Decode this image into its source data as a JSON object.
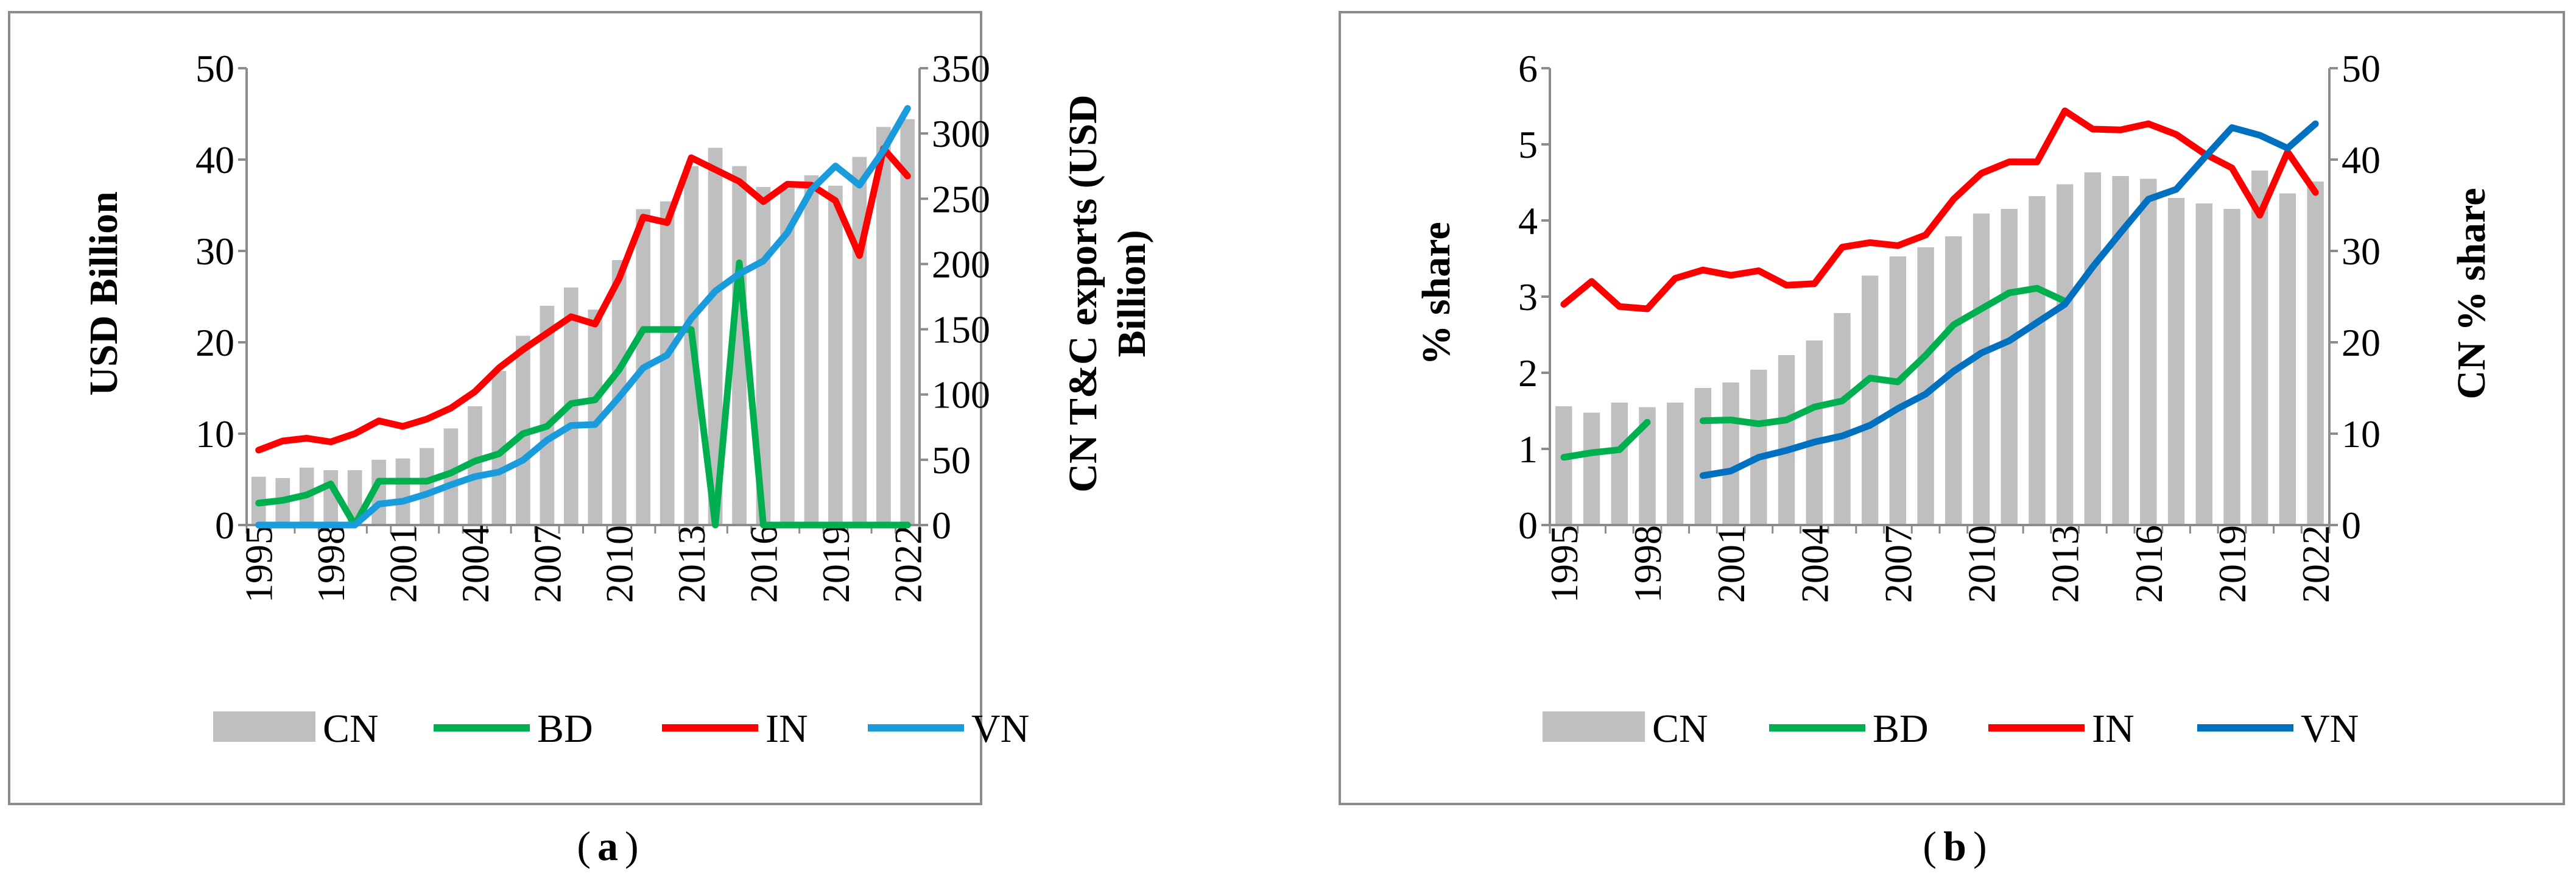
{
  "chart_data": [
    {
      "type": "bar+line",
      "panel_label": "a",
      "x": [
        "1995",
        "1996",
        "1997",
        "1998",
        "1999",
        "2000",
        "2001",
        "2002",
        "2003",
        "2004",
        "2005",
        "2006",
        "2007",
        "2008",
        "2009",
        "2010",
        "2011",
        "2012",
        "2013",
        "2014",
        "2015",
        "2016",
        "2017",
        "2018",
        "2019",
        "2020",
        "2021",
        "2022"
      ],
      "x_tick_labels": [
        "1995",
        "1998",
        "2001",
        "2004",
        "2007",
        "2010",
        "2013",
        "2016",
        "2019",
        "2022"
      ],
      "ylabel": "USD Billion",
      "y2label": "CN T&C exports (USD Billion)",
      "ylim": [
        0,
        50
      ],
      "y_ticks": [
        0,
        10,
        20,
        30,
        40,
        50
      ],
      "y2lim": [
        0,
        350
      ],
      "y2_ticks": [
        0,
        50,
        100,
        150,
        200,
        250,
        300,
        350
      ],
      "series": [
        {
          "name": "CN",
          "kind": "bar",
          "axis": "right",
          "color": "#bfbfbf",
          "values": [
            37,
            36,
            44,
            42,
            42,
            50,
            51,
            59,
            74,
            91,
            118,
            145,
            168,
            182,
            165,
            203,
            242,
            248,
            275,
            289,
            275,
            259,
            258,
            268,
            260,
            282,
            305,
            311
          ]
        },
        {
          "name": "BD",
          "kind": "line",
          "axis": "left",
          "color": "#00b050",
          "values": [
            2.4,
            2.7,
            3.3,
            4.5,
            0,
            4.8,
            4.8,
            4.8,
            5.7,
            7.0,
            7.8,
            10.0,
            10.8,
            13.3,
            13.7,
            17.0,
            21.4,
            21.4,
            21.4,
            0,
            28.7,
            0,
            0,
            0,
            0,
            0,
            0,
            0
          ]
        },
        {
          "name": "IN",
          "kind": "line",
          "axis": "left",
          "color": "#ff0000",
          "values": [
            8.2,
            9.2,
            9.5,
            9.1,
            10.0,
            11.4,
            10.8,
            11.6,
            12.8,
            14.6,
            17.2,
            19.2,
            21.0,
            22.8,
            22.0,
            27.0,
            33.7,
            33.1,
            40.2,
            38.9,
            37.6,
            35.4,
            37.3,
            37.2,
            35.5,
            29.5,
            41.2,
            38.2
          ]
        },
        {
          "name": "VN",
          "kind": "line",
          "axis": "left",
          "color": "#1a9bdb",
          "values": [
            0,
            0,
            0,
            0,
            0,
            2.3,
            2.6,
            3.4,
            4.4,
            5.3,
            5.8,
            7.1,
            9.3,
            10.9,
            11.0,
            14.0,
            17.2,
            18.6,
            22.6,
            25.6,
            27.5,
            28.9,
            32.0,
            36.7,
            39.3,
            37.2,
            41.0,
            45.6
          ]
        }
      ],
      "legend": [
        "CN",
        "BD",
        "IN",
        "VN"
      ],
      "legend_position": "bottom",
      "grid": false
    },
    {
      "type": "bar+line",
      "panel_label": "b",
      "x": [
        "1995",
        "1996",
        "1997",
        "1998",
        "1999",
        "2000",
        "2001",
        "2002",
        "2003",
        "2004",
        "2005",
        "2006",
        "2007",
        "2008",
        "2009",
        "2010",
        "2011",
        "2012",
        "2013",
        "2014",
        "2015",
        "2016",
        "2017",
        "2018",
        "2019",
        "2020",
        "2021",
        "2022"
      ],
      "x_tick_labels": [
        "1995",
        "1998",
        "2001",
        "2004",
        "2007",
        "2010",
        "2013",
        "2016",
        "2019",
        "2022"
      ],
      "ylabel": "% share",
      "y2label": "CN % share",
      "ylim": [
        0,
        6
      ],
      "y_ticks": [
        0,
        1,
        2,
        3,
        4,
        5,
        6
      ],
      "y2lim": [
        0,
        50
      ],
      "y2_ticks": [
        0,
        10,
        20,
        30,
        40,
        50
      ],
      "series": [
        {
          "name": "CN",
          "kind": "bar",
          "axis": "right",
          "color": "#bfbfbf",
          "values": [
            13,
            12.3,
            13.4,
            12.9,
            13.4,
            15,
            15.6,
            17,
            18.6,
            20.2,
            23.2,
            27.3,
            29.4,
            30.4,
            31.6,
            34.1,
            34.6,
            36,
            37.3,
            38.6,
            38.2,
            37.9,
            35.8,
            35.2,
            34.6,
            38.8,
            36.3,
            37.6
          ]
        },
        {
          "name": "BD",
          "kind": "line",
          "axis": "left",
          "color": "#00b050",
          "values": [
            0.89,
            0.95,
            0.99,
            1.35,
            null,
            1.37,
            1.38,
            1.33,
            1.38,
            1.55,
            1.63,
            1.93,
            1.88,
            2.23,
            2.63,
            2.84,
            3.05,
            3.11,
            2.94,
            null,
            null,
            null,
            null,
            null,
            null,
            null,
            null,
            null
          ]
        },
        {
          "name": "IN",
          "kind": "line",
          "axis": "left",
          "color": "#ff0000",
          "values": [
            2.9,
            3.2,
            2.87,
            2.84,
            3.24,
            3.35,
            3.28,
            3.34,
            3.15,
            3.17,
            3.65,
            3.71,
            3.67,
            3.81,
            4.28,
            4.62,
            4.77,
            4.77,
            5.44,
            5.2,
            5.19,
            5.27,
            5.13,
            4.88,
            4.69,
            4.07,
            4.9,
            4.37
          ]
        },
        {
          "name": "VN",
          "kind": "line",
          "axis": "left",
          "color": "#0070c0",
          "values": [
            null,
            null,
            null,
            null,
            null,
            0.65,
            0.71,
            0.89,
            0.98,
            1.09,
            1.17,
            1.31,
            1.53,
            1.72,
            2.02,
            2.26,
            2.42,
            2.66,
            2.9,
            3.39,
            3.84,
            4.28,
            4.41,
            4.82,
            5.22,
            5.12,
            4.95,
            5.27
          ]
        }
      ],
      "legend": [
        "CN",
        "BD",
        "IN",
        "VN"
      ],
      "legend_position": "bottom",
      "grid": false
    }
  ],
  "captions": {
    "a": "a",
    "b": "b"
  },
  "legend_labels": {
    "cn": "CN",
    "bd": "BD",
    "in": "IN",
    "vn": "VN"
  },
  "axis_labels": {
    "a_left": "USD Billion",
    "a_right_line1": "CN T&C exports (USD",
    "a_right_line2": "Billion)",
    "b_left": "% share",
    "b_right": "CN % share"
  }
}
